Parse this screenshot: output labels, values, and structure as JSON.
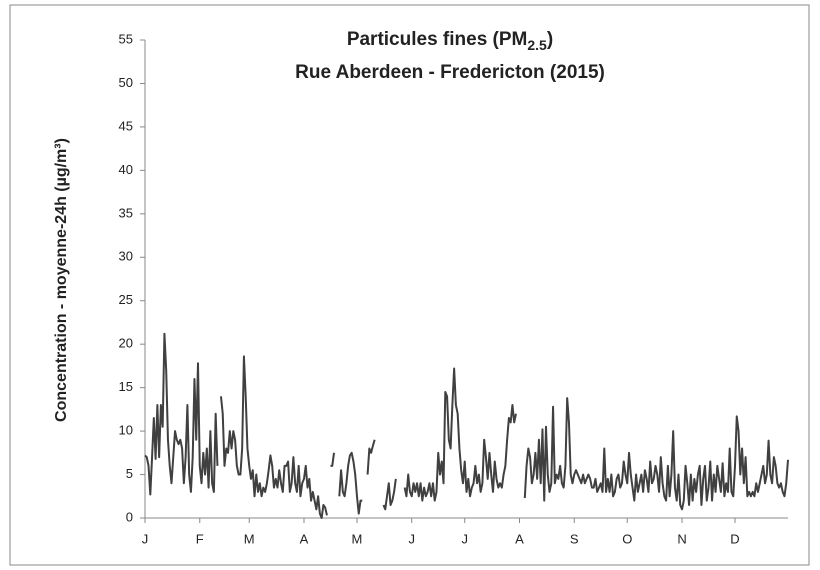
{
  "chart_data": {
    "type": "line",
    "title": {
      "main": "Particules fines (PM",
      "subscript": "2.5",
      "end": ")"
    },
    "subtitle": "Rue Aberdeen - Fredericton (2015)",
    "y_label": "Concentration - moyenne-24h (µg/m³)",
    "ylim": [
      0,
      55
    ],
    "yticks": [
      0,
      5,
      10,
      15,
      20,
      25,
      30,
      35,
      40,
      45,
      50,
      55
    ],
    "grid": false,
    "categories": [
      "J",
      null,
      null,
      null,
      null,
      null,
      null,
      null,
      null,
      null,
      null,
      null,
      null,
      null,
      null,
      null,
      null,
      null,
      null,
      null,
      null,
      null,
      null,
      null,
      null,
      null,
      null,
      null,
      null,
      null,
      null,
      "F",
      null,
      null,
      null,
      null,
      null,
      null,
      null,
      null,
      null,
      null,
      null,
      null,
      null,
      null,
      null,
      null,
      null,
      null,
      null,
      null,
      null,
      null,
      null,
      null,
      null,
      null,
      null,
      "M",
      null,
      null,
      null,
      null,
      null,
      null,
      null,
      null,
      null,
      null,
      null,
      null,
      null,
      null,
      null,
      null,
      null,
      null,
      null,
      null,
      null,
      null,
      null,
      null,
      null,
      null,
      null,
      null,
      null,
      null,
      "A",
      null,
      null,
      null,
      null,
      null,
      null,
      null,
      null,
      null,
      null,
      null,
      null,
      null,
      null,
      null,
      null,
      null,
      null,
      null,
      null,
      null,
      null,
      null,
      null,
      null,
      null,
      null,
      null,
      null,
      "M",
      null,
      null,
      null,
      null,
      null,
      null,
      null,
      null,
      null,
      null,
      null,
      null,
      null,
      null,
      null,
      null,
      null,
      null,
      null,
      null,
      null,
      null,
      null,
      null,
      null,
      null,
      null,
      null,
      null,
      null,
      "J",
      null,
      null,
      null,
      null,
      null,
      null,
      null,
      null,
      null,
      null,
      null,
      null,
      null,
      null,
      null,
      null,
      null,
      null,
      null,
      null,
      null,
      null,
      null,
      null,
      null,
      null,
      null,
      null,
      null,
      "J",
      null,
      null,
      null,
      null,
      null,
      null,
      null,
      null,
      null,
      null,
      null,
      null,
      null,
      null,
      null,
      null,
      null,
      null,
      null,
      null,
      null,
      null,
      null,
      null,
      null,
      null,
      null,
      null,
      null,
      null,
      "A",
      null,
      null,
      null,
      null,
      null,
      null,
      null,
      null,
      null,
      null,
      null,
      null,
      null,
      null,
      null,
      null,
      null,
      null,
      null,
      null,
      null,
      null,
      null,
      null,
      null,
      null,
      null,
      null,
      null,
      null,
      "S",
      null,
      null,
      null,
      null,
      null,
      null,
      null,
      null,
      null,
      null,
      null,
      null,
      null,
      null,
      null,
      null,
      null,
      null,
      null,
      null,
      null,
      null,
      null,
      null,
      null,
      null,
      null,
      null,
      null,
      "O",
      null,
      null,
      null,
      null,
      null,
      null,
      null,
      null,
      null,
      null,
      null,
      null,
      null,
      null,
      null,
      null,
      null,
      null,
      null,
      null,
      null,
      null,
      null,
      null,
      null,
      null,
      null,
      null,
      null,
      null,
      "N",
      null,
      null,
      null,
      null,
      null,
      null,
      null,
      null,
      null,
      null,
      null,
      null,
      null,
      null,
      null,
      null,
      null,
      null,
      null,
      null,
      null,
      null,
      null,
      null,
      null,
      null,
      null,
      null,
      null,
      "D",
      null,
      null,
      null,
      null,
      null,
      null,
      null,
      null,
      null,
      null,
      null,
      null,
      null,
      null,
      null,
      null,
      null,
      null,
      null,
      null,
      null,
      null,
      null,
      null,
      null,
      null,
      null,
      null,
      null,
      null
    ],
    "series": [
      {
        "color": "#404040",
        "values": [
          7.2,
          7,
          6,
          2.7,
          7,
          11.5,
          6.8,
          13,
          7,
          13,
          10.5,
          21.2,
          17,
          9,
          6,
          4,
          7,
          10,
          9,
          8.5,
          9,
          8,
          4,
          7,
          13,
          5,
          3,
          7,
          16,
          9,
          17.8,
          6,
          4,
          7.5,
          5,
          8,
          3.5,
          10,
          4,
          3,
          12,
          6,
          null,
          14,
          12,
          6,
          8,
          7.5,
          10,
          8,
          10,
          9,
          6,
          5,
          5,
          8,
          18.6,
          14,
          8,
          6,
          4.5,
          5.5,
          2.5,
          5,
          3,
          4,
          2.5,
          3.5,
          3,
          4,
          5.5,
          7.2,
          6,
          3.5,
          4.5,
          3.5,
          5.5,
          4,
          3,
          6,
          6,
          6.5,
          3,
          4,
          7,
          4,
          3,
          6,
          2.5,
          4,
          4.5,
          6,
          3.5,
          4.5,
          2,
          3,
          2,
          1,
          2.5,
          0.5,
          0,
          1.5,
          1.2,
          0.3,
          null,
          6,
          6,
          7.5,
          null,
          null,
          2.5,
          5.5,
          3,
          2.5,
          4,
          6,
          7.2,
          7.5,
          6.5,
          5,
          2.5,
          0.5,
          2,
          2,
          null,
          null,
          5,
          8,
          7.5,
          8.3,
          9,
          null,
          null,
          null,
          null,
          1.5,
          1,
          2.5,
          4,
          1.5,
          2,
          3,
          4.5,
          null,
          null,
          null,
          null,
          3.5,
          2.5,
          5,
          3,
          2.5,
          4,
          3,
          4,
          2.5,
          4,
          2,
          3.5,
          2.5,
          3,
          4,
          2.5,
          4,
          2,
          3,
          7.5,
          5,
          6.5,
          4,
          14.5,
          14,
          9,
          8,
          13,
          17.2,
          13,
          12,
          8,
          5.5,
          4,
          6.5,
          3,
          4.5,
          2.5,
          3.5,
          4,
          6,
          4,
          5,
          3,
          4,
          9,
          7,
          4.5,
          7.5,
          5,
          3,
          6.5,
          4.5,
          3.5,
          4,
          3.5,
          5,
          6,
          9,
          11.5,
          11,
          13,
          11,
          12,
          null,
          null,
          null,
          null,
          2.3,
          6,
          8,
          7,
          4,
          5,
          7.5,
          4.5,
          9,
          4,
          10.2,
          2,
          10.5,
          5,
          3,
          4,
          12.8,
          4,
          5,
          4.5,
          6,
          4,
          3.5,
          6,
          13.8,
          11,
          5,
          4,
          5,
          5.5,
          5,
          4.5,
          4,
          5,
          4,
          4.5,
          5,
          4.5,
          3.5,
          3.5,
          4.5,
          3,
          3.5,
          4,
          3,
          8,
          3,
          4.5,
          3,
          5,
          2.5,
          3,
          4.5,
          5,
          3.5,
          4,
          6.5,
          5,
          4,
          7.5,
          5,
          3.5,
          2,
          5,
          3,
          4,
          5,
          3,
          5.5,
          4.5,
          3,
          6.5,
          4,
          4.5,
          6,
          5,
          3,
          7,
          4,
          2.5,
          2,
          6,
          2.5,
          5,
          10,
          3.5,
          2,
          5,
          1.5,
          1,
          2,
          6,
          4,
          1.5,
          5,
          2,
          4.5,
          3,
          5,
          6,
          1.5,
          4.5,
          6,
          2,
          3.5,
          6.5,
          2,
          5,
          3,
          6,
          4.5,
          3,
          6.3,
          2.5,
          4,
          3,
          8,
          3,
          2.5,
          6,
          11.7,
          10,
          5,
          8,
          4,
          7,
          2.5,
          3,
          2.5,
          3,
          2.5,
          4,
          3,
          4,
          5,
          6,
          4,
          5,
          8.9,
          5,
          4,
          7,
          6,
          4,
          3.5,
          4,
          3,
          2.5,
          4,
          6.7
        ]
      }
    ]
  }
}
